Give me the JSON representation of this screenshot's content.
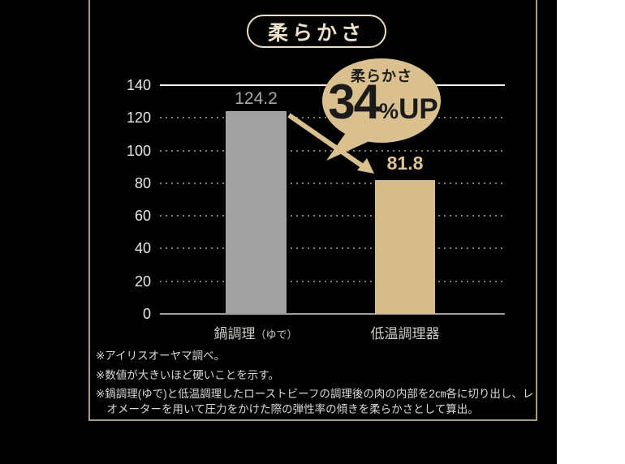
{
  "title_badge": {
    "text": "柔らかさ"
  },
  "chart_data": {
    "type": "bar",
    "title": "柔らかさ",
    "categories": [
      "鍋調理（ゆで）",
      "低温調理器"
    ],
    "values": [
      124.2,
      81.8
    ],
    "value_labels": [
      "124.2",
      "81.8"
    ],
    "yticks": [
      140,
      120,
      100,
      80,
      60,
      40,
      20,
      0
    ],
    "ylim": [
      0,
      140
    ],
    "grid": "horizontal-dotted",
    "legend": "none",
    "bar_colors": [
      "#a2a2a2",
      "#d4bb89"
    ],
    "annotation": {
      "label": "柔らかさ",
      "value": "34",
      "percent_sign": "%",
      "suffix": "UP",
      "shape": "speech-bubble-with-arrow",
      "color": "#d9c08e"
    }
  },
  "category_labels": {
    "cat1_main": "鍋調理",
    "cat1_sub": "（ゆで）",
    "cat2": "低温調理器"
  },
  "footnotes": [
    "※アイリスオーヤマ調べ。",
    "※数値が大きいほど硬いことを示す。",
    "※鍋調理(ゆで)と低温調理したローストビーフの調理後の肉の内部を2㎝各に切り出し、レオメーターを用いて圧力をかけた際の弾性率の傾きを柔らかさとして算出。"
  ],
  "colors": {
    "background": "#000000",
    "frame": "#ab9b7f",
    "cream": "#ece1c8",
    "tan": "#d4bb89",
    "gray_bar": "#a2a2a2",
    "badge_text": "#1b1b1b",
    "side_strip": "#ffffff"
  }
}
